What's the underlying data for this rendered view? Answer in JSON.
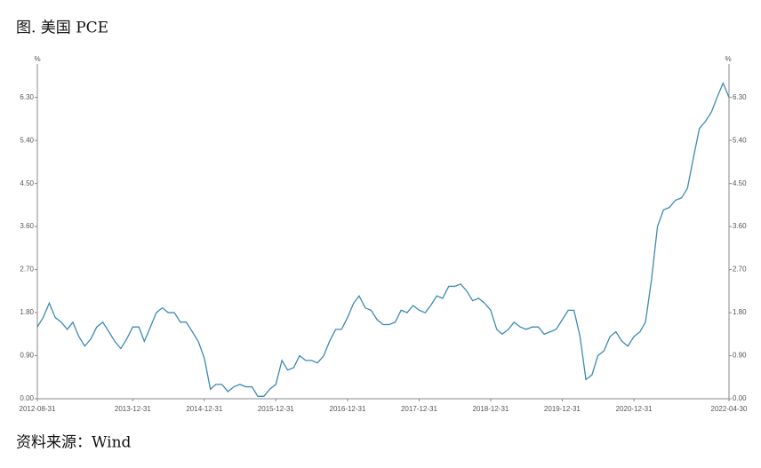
{
  "chart_data": {
    "type": "line",
    "title": "图. 美国 PCE",
    "source": "资料来源：Wind",
    "unit": "%",
    "x": [
      "2012-08-31",
      "2012-09-30",
      "2012-10-31",
      "2012-11-30",
      "2012-12-31",
      "2013-01-31",
      "2013-02-28",
      "2013-03-31",
      "2013-04-30",
      "2013-05-31",
      "2013-06-30",
      "2013-07-31",
      "2013-08-31",
      "2013-09-30",
      "2013-10-31",
      "2013-11-30",
      "2013-12-31",
      "2014-01-31",
      "2014-02-28",
      "2014-03-31",
      "2014-04-30",
      "2014-05-31",
      "2014-06-30",
      "2014-07-31",
      "2014-08-31",
      "2014-09-30",
      "2014-10-31",
      "2014-11-30",
      "2014-12-31",
      "2015-01-31",
      "2015-02-28",
      "2015-03-31",
      "2015-04-30",
      "2015-05-31",
      "2015-06-30",
      "2015-07-31",
      "2015-08-31",
      "2015-09-30",
      "2015-10-31",
      "2015-11-30",
      "2015-12-31",
      "2016-01-31",
      "2016-02-29",
      "2016-03-31",
      "2016-04-30",
      "2016-05-31",
      "2016-06-30",
      "2016-07-31",
      "2016-08-31",
      "2016-09-30",
      "2016-10-31",
      "2016-11-30",
      "2016-12-31",
      "2017-01-31",
      "2017-02-28",
      "2017-03-31",
      "2017-04-30",
      "2017-05-31",
      "2017-06-30",
      "2017-07-31",
      "2017-08-31",
      "2017-09-30",
      "2017-10-31",
      "2017-11-30",
      "2017-12-31",
      "2018-01-31",
      "2018-02-28",
      "2018-03-31",
      "2018-04-30",
      "2018-05-31",
      "2018-06-30",
      "2018-07-31",
      "2018-08-31",
      "2018-09-30",
      "2018-10-31",
      "2018-11-30",
      "2018-12-31",
      "2019-01-31",
      "2019-02-28",
      "2019-03-31",
      "2019-04-30",
      "2019-05-31",
      "2019-06-30",
      "2019-07-31",
      "2019-08-31",
      "2019-09-30",
      "2019-10-31",
      "2019-11-30",
      "2019-12-31",
      "2020-01-31",
      "2020-02-29",
      "2020-03-31",
      "2020-04-30",
      "2020-05-31",
      "2020-06-30",
      "2020-07-31",
      "2020-08-31",
      "2020-09-30",
      "2020-10-31",
      "2020-11-30",
      "2020-12-31",
      "2021-01-31",
      "2021-02-28",
      "2021-03-31",
      "2021-04-30",
      "2021-05-31",
      "2021-06-30",
      "2021-07-31",
      "2021-08-31",
      "2021-09-30",
      "2021-10-31",
      "2021-11-30",
      "2021-12-31",
      "2022-01-31",
      "2022-02-28",
      "2022-03-31",
      "2022-04-30"
    ],
    "series": [
      {
        "name": "美国 PCE",
        "color": "#3d8ab5",
        "values": [
          1.5,
          1.7,
          2.0,
          1.7,
          1.6,
          1.45,
          1.6,
          1.3,
          1.1,
          1.25,
          1.5,
          1.6,
          1.4,
          1.2,
          1.05,
          1.25,
          1.5,
          1.5,
          1.2,
          1.5,
          1.8,
          1.9,
          1.8,
          1.8,
          1.6,
          1.6,
          1.4,
          1.2,
          0.85,
          0.2,
          0.3,
          0.3,
          0.15,
          0.25,
          0.3,
          0.25,
          0.25,
          0.05,
          0.05,
          0.2,
          0.3,
          0.8,
          0.6,
          0.65,
          0.9,
          0.8,
          0.8,
          0.75,
          0.9,
          1.2,
          1.45,
          1.45,
          1.7,
          2.0,
          2.15,
          1.9,
          1.85,
          1.65,
          1.55,
          1.55,
          1.6,
          1.85,
          1.8,
          1.95,
          1.85,
          1.8,
          1.95,
          2.15,
          2.1,
          2.35,
          2.35,
          2.4,
          2.25,
          2.05,
          2.1,
          2.0,
          1.85,
          1.45,
          1.35,
          1.45,
          1.6,
          1.5,
          1.45,
          1.5,
          1.5,
          1.35,
          1.4,
          1.45,
          1.65,
          1.85,
          1.85,
          1.3,
          0.4,
          0.5,
          0.9,
          1.0,
          1.3,
          1.4,
          1.2,
          1.1,
          1.3,
          1.4,
          1.6,
          2.5,
          3.6,
          3.95,
          4.0,
          4.15,
          4.2,
          4.4,
          5.05,
          5.65,
          5.8,
          6.0,
          6.3,
          6.6,
          6.3
        ]
      }
    ],
    "xlim": [
      "2012-08-31",
      "2022-04-30"
    ],
    "xticks": [
      "2012-08-31",
      "2013-12-31",
      "2014-12-31",
      "2015-12-31",
      "2016-12-31",
      "2017-12-31",
      "2018-12-31",
      "2019-12-31",
      "2020-12-31",
      "2022-04-30"
    ],
    "ylim": [
      0,
      7.0
    ],
    "yticks": [
      {
        "value": 0,
        "label": "0.00"
      },
      {
        "value": 0.9,
        "label": "0.90"
      },
      {
        "value": 1.8,
        "label": "1.80"
      },
      {
        "value": 2.7,
        "label": "2.70"
      },
      {
        "value": 3.6,
        "label": "3.60"
      },
      {
        "value": 4.5,
        "label": "4.50"
      },
      {
        "value": 5.4,
        "label": "5.40"
      },
      {
        "value": 6.3,
        "label": "6.30"
      }
    ],
    "y2lim": [
      0,
      7.0
    ],
    "y2ticks": [
      {
        "value": 0,
        "label": "0.00"
      },
      {
        "value": 0.9,
        "label": "0.90"
      },
      {
        "value": 1.8,
        "label": "1.80"
      },
      {
        "value": 2.7,
        "label": "2.70"
      },
      {
        "value": 3.6,
        "label": "3.60"
      },
      {
        "value": 4.5,
        "label": "4.50"
      },
      {
        "value": 5.4,
        "label": "5.40"
      },
      {
        "value": 6.3,
        "label": "6.30"
      }
    ]
  }
}
